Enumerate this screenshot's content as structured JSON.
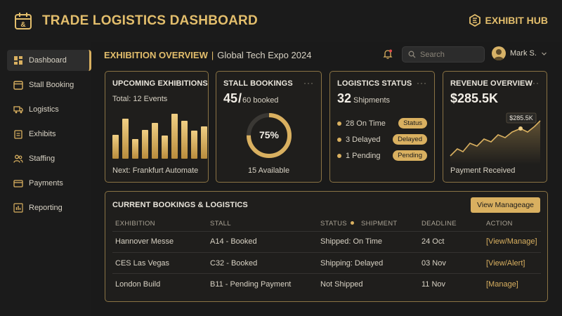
{
  "header": {
    "title": "TRADE LOGISTICS DASHBOARD",
    "brand": "EXHIBIT HUB",
    "accent_color": "#e3be6c",
    "logo_icon": "calendar-ampersand-icon",
    "brand_icon": "hexagon-logo-icon"
  },
  "sidebar": {
    "items": [
      {
        "label": "Dashboard",
        "icon": "grid-icon",
        "active": true
      },
      {
        "label": "Stall Booking",
        "icon": "calendar-icon"
      },
      {
        "label": "Logistics",
        "icon": "truck-icon"
      },
      {
        "label": "Exhibits",
        "icon": "clipboard-icon"
      },
      {
        "label": "Staffing",
        "icon": "people-icon"
      },
      {
        "label": "Payments",
        "icon": "credit-card-icon"
      },
      {
        "label": "Reporting",
        "icon": "bar-chart-icon"
      }
    ]
  },
  "overview": {
    "label": "EXHIBITION OVERVIEW",
    "separator": "|",
    "event": "Global Tech Expo 2024"
  },
  "search": {
    "placeholder": "Search"
  },
  "user": {
    "name": "Mark S."
  },
  "cards": {
    "upcoming": {
      "title": "UPCOMING EXHIBITIONS",
      "total": "Total: 12 Events",
      "next": "Next: Frankfurt Automate",
      "bars": [
        0.52,
        0.86,
        0.42,
        0.62,
        0.78,
        0.5,
        0.97,
        0.82,
        0.6,
        0.7
      ]
    },
    "stall": {
      "title": "STALL BOOKINGS",
      "booked": "45",
      "slash": "/",
      "total": "60 booked",
      "percent_label": "75%",
      "percent": 0.75,
      "available": "15 Available",
      "menu": "···"
    },
    "logistics": {
      "title": "LOGISTICS STATUS",
      "count": "32",
      "unit": "Shipments",
      "menu": "···",
      "rows": [
        {
          "label": "28 On Time",
          "pill": "Status"
        },
        {
          "label": "3 Delayed",
          "pill": "Delayed"
        },
        {
          "label": "1 Pending",
          "pill": "Pending"
        }
      ]
    },
    "revenue": {
      "title": "REVENUE OVERVIEW",
      "amount": "$285.5K",
      "callout": "$285.5K",
      "footer": "Payment Received",
      "menu": "···"
    }
  },
  "bookings": {
    "title": "CURRENT BOOKINGS & LOGISTICS",
    "button": "View Manageage",
    "columns": [
      "EXHIBITION",
      "STALL",
      "STATUS",
      "SHIPMENT",
      "DEADLINE",
      "ACTION"
    ],
    "rows": [
      {
        "exhibition": "Hannover Messe",
        "stall": "A14 - Booked",
        "status": "Shipped: On Time",
        "deadline": "24 Oct",
        "action": "[View/Manage]"
      },
      {
        "exhibition": "CES Las Vegas",
        "stall": "C32 - Booked",
        "status": "Shipping: Delayed",
        "deadline": "03 Nov",
        "action": "[View/Alert]"
      },
      {
        "exhibition": "London Build",
        "stall": "B11 - Pending Payment",
        "status": "Not Shipped",
        "deadline": "11 Nov",
        "action": "[Manage]"
      }
    ]
  }
}
